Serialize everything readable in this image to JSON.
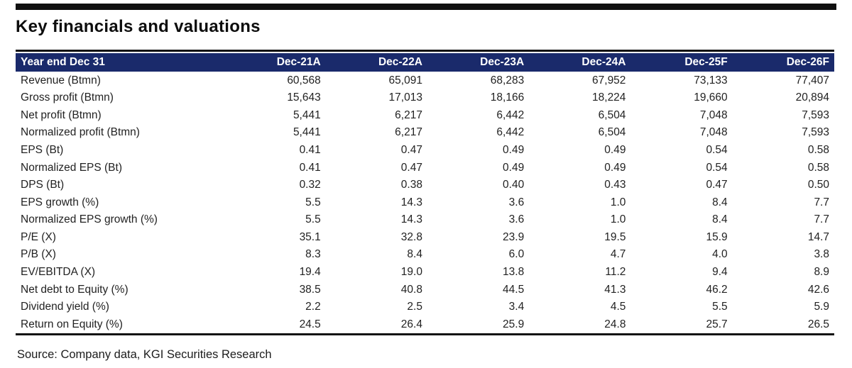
{
  "page": {
    "title": "Key financials and valuations",
    "source_line": "Source: Company data, KGI Securities Research"
  },
  "colors": {
    "header_bg": "#1a2a6b",
    "header_text": "#ffffff",
    "rule_black": "#111111",
    "body_text": "#222222"
  },
  "table": {
    "header": [
      "Year end Dec 31",
      "Dec-21A",
      "Dec-22A",
      "Dec-23A",
      "Dec-24A",
      "Dec-25F",
      "Dec-26F"
    ],
    "rows": [
      {
        "label": "Revenue (Btmn)",
        "values": [
          "60,568",
          "65,091",
          "68,283",
          "67,952",
          "73,133",
          "77,407"
        ]
      },
      {
        "label": "Gross profit (Btmn)",
        "values": [
          "15,643",
          "17,013",
          "18,166",
          "18,224",
          "19,660",
          "20,894"
        ]
      },
      {
        "label": "Net profit (Btmn)",
        "values": [
          "5,441",
          "6,217",
          "6,442",
          "6,504",
          "7,048",
          "7,593"
        ]
      },
      {
        "label": "Normalized profit (Btmn)",
        "values": [
          "5,441",
          "6,217",
          "6,442",
          "6,504",
          "7,048",
          "7,593"
        ]
      },
      {
        "label": "EPS (Bt)",
        "values": [
          "0.41",
          "0.47",
          "0.49",
          "0.49",
          "0.54",
          "0.58"
        ]
      },
      {
        "label": "Normalized EPS (Bt)",
        "values": [
          "0.41",
          "0.47",
          "0.49",
          "0.49",
          "0.54",
          "0.58"
        ]
      },
      {
        "label": "DPS (Bt)",
        "values": [
          "0.32",
          "0.38",
          "0.40",
          "0.43",
          "0.47",
          "0.50"
        ]
      },
      {
        "label": "EPS growth (%)",
        "values": [
          "5.5",
          "14.3",
          "3.6",
          "1.0",
          "8.4",
          "7.7"
        ]
      },
      {
        "label": "Normalized EPS growth (%)",
        "values": [
          "5.5",
          "14.3",
          "3.6",
          "1.0",
          "8.4",
          "7.7"
        ]
      },
      {
        "label": "P/E (X)",
        "values": [
          "35.1",
          "32.8",
          "23.9",
          "19.5",
          "15.9",
          "14.7"
        ]
      },
      {
        "label": "P/B (X)",
        "values": [
          "8.3",
          "8.4",
          "6.0",
          "4.7",
          "4.0",
          "3.8"
        ]
      },
      {
        "label": "EV/EBITDA (X)",
        "values": [
          "19.4",
          "19.0",
          "13.8",
          "11.2",
          "9.4",
          "8.9"
        ]
      },
      {
        "label": "Net debt to Equity (%)",
        "values": [
          "38.5",
          "40.8",
          "44.5",
          "41.3",
          "46.2",
          "42.6"
        ]
      },
      {
        "label": "Dividend yield (%)",
        "values": [
          "2.2",
          "2.5",
          "3.4",
          "4.5",
          "5.5",
          "5.9"
        ]
      },
      {
        "label": "Return on Equity (%)",
        "values": [
          "24.5",
          "26.4",
          "25.9",
          "24.8",
          "25.7",
          "26.5"
        ]
      }
    ]
  }
}
